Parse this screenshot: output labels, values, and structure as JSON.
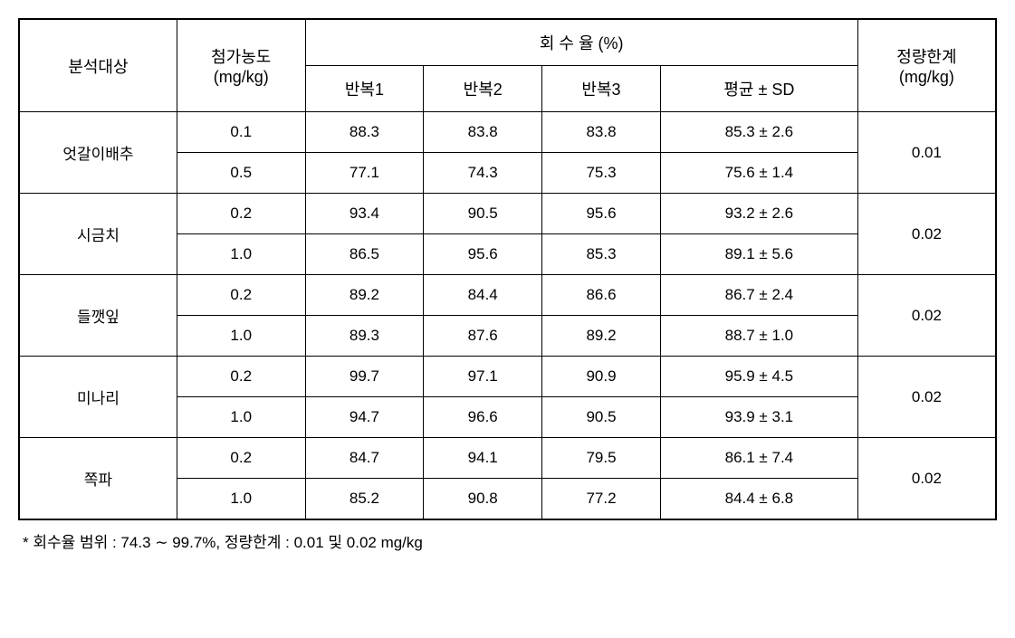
{
  "table": {
    "headers": {
      "analysis_target": "분석대상",
      "concentration": "첨가농도",
      "concentration_unit": "(mg/kg)",
      "recovery_rate": "회  수  율 (%)",
      "rep1": "반복1",
      "rep2": "반복2",
      "rep3": "반복3",
      "mean_sd": "평균 ± SD",
      "loq": "정량한계",
      "loq_unit": "(mg/kg)"
    },
    "rows": [
      {
        "target": "엇갈이배추",
        "loq": "0.01",
        "sub": [
          {
            "conc": "0.1",
            "r1": "88.3",
            "r2": "83.8",
            "r3": "83.8",
            "mean": "85.3 ± 2.6"
          },
          {
            "conc": "0.5",
            "r1": "77.1",
            "r2": "74.3",
            "r3": "75.3",
            "mean": "75.6 ± 1.4"
          }
        ]
      },
      {
        "target": "시금치",
        "loq": "0.02",
        "sub": [
          {
            "conc": "0.2",
            "r1": "93.4",
            "r2": "90.5",
            "r3": "95.6",
            "mean": "93.2 ± 2.6"
          },
          {
            "conc": "1.0",
            "r1": "86.5",
            "r2": "95.6",
            "r3": "85.3",
            "mean": "89.1 ± 5.6"
          }
        ]
      },
      {
        "target": "들깻잎",
        "loq": "0.02",
        "sub": [
          {
            "conc": "0.2",
            "r1": "89.2",
            "r2": "84.4",
            "r3": "86.6",
            "mean": "86.7 ± 2.4"
          },
          {
            "conc": "1.0",
            "r1": "89.3",
            "r2": "87.6",
            "r3": "89.2",
            "mean": "88.7 ± 1.0"
          }
        ]
      },
      {
        "target": "미나리",
        "loq": "0.02",
        "sub": [
          {
            "conc": "0.2",
            "r1": "99.7",
            "r2": "97.1",
            "r3": "90.9",
            "mean": "95.9 ± 4.5"
          },
          {
            "conc": "1.0",
            "r1": "94.7",
            "r2": "96.6",
            "r3": "90.5",
            "mean": "93.9 ± 3.1"
          }
        ]
      },
      {
        "target": "쪽파",
        "loq": "0.02",
        "sub": [
          {
            "conc": "0.2",
            "r1": "84.7",
            "r2": "94.1",
            "r3": "79.5",
            "mean": "86.1 ± 7.4"
          },
          {
            "conc": "1.0",
            "r1": "85.2",
            "r2": "90.8",
            "r3": "77.2",
            "mean": "84.4 ± 6.8"
          }
        ]
      }
    ],
    "column_widths": [
      "160px",
      "130px",
      "120px",
      "120px",
      "120px",
      "200px",
      "140px"
    ]
  },
  "footnote": "* 회수율 범위 : 74.3 ∼ 99.7%, 정량한계 : 0.01 및 0.02 mg/kg"
}
